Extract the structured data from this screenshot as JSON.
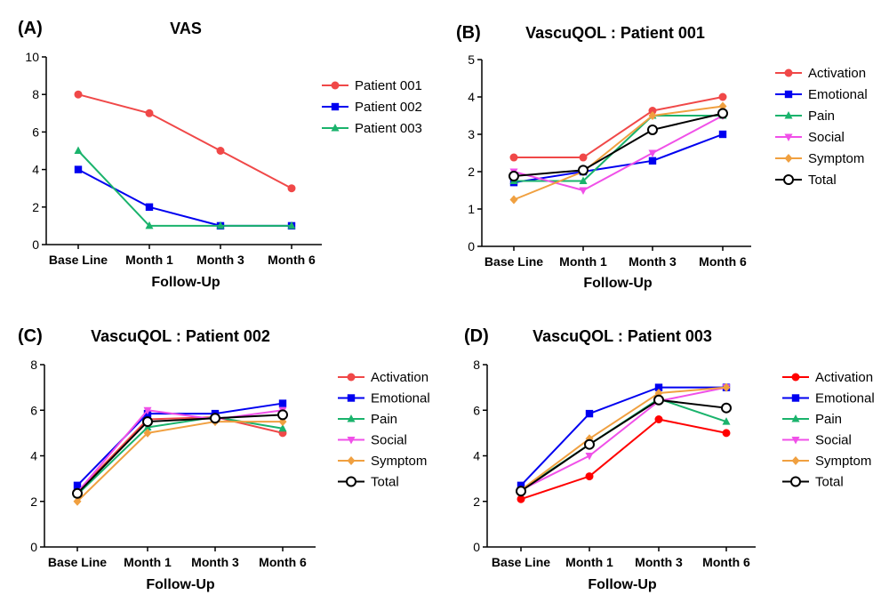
{
  "colors": {
    "red": "#f04848",
    "bright_red": "#ff0000",
    "blue": "#0000f0",
    "green": "#1ab36c",
    "magenta": "#f050e8",
    "orange": "#f0a040",
    "black": "#000000"
  },
  "chart_data": [
    {
      "panel_label": "(A)",
      "type": "line",
      "title": "VAS",
      "xlabel": "Follow-Up",
      "ylabel": "",
      "categories": [
        "Base Line",
        "Month 1",
        "Month 3",
        "Month 6"
      ],
      "ylim": [
        0,
        10
      ],
      "yticks": [
        0,
        2,
        4,
        6,
        8,
        10
      ],
      "legend_position": "right",
      "grid": false,
      "series": [
        {
          "name": "Patient 001",
          "color": "#f04848",
          "marker": "circle",
          "values": [
            8,
            7,
            5,
            3
          ]
        },
        {
          "name": "Patient 002",
          "color": "#0000f0",
          "marker": "square",
          "values": [
            4,
            2,
            1,
            1
          ]
        },
        {
          "name": "Patient 003",
          "color": "#1ab36c",
          "marker": "triangle-up",
          "values": [
            5,
            1,
            1,
            1
          ]
        }
      ]
    },
    {
      "panel_label": "(B)",
      "type": "line",
      "title": "VascuQOL : Patient 001",
      "xlabel": "Follow-Up",
      "ylabel": "",
      "categories": [
        "Base Line",
        "Month 1",
        "Month 3",
        "Month 6"
      ],
      "ylim": [
        0,
        5
      ],
      "yticks": [
        0,
        1,
        2,
        3,
        4,
        5
      ],
      "legend_position": "right",
      "grid": false,
      "series": [
        {
          "name": "Activation",
          "color": "#f04848",
          "marker": "circle",
          "values": [
            2.38,
            2.38,
            3.63,
            4.0
          ]
        },
        {
          "name": "Emotional",
          "color": "#0000f0",
          "marker": "square",
          "values": [
            1.71,
            2.0,
            2.29,
            3.0
          ]
        },
        {
          "name": "Pain",
          "color": "#1ab36c",
          "marker": "triangle-up",
          "values": [
            1.75,
            1.75,
            3.5,
            3.5
          ]
        },
        {
          "name": "Social",
          "color": "#f050e8",
          "marker": "triangle-down",
          "values": [
            2.0,
            1.5,
            2.5,
            3.5
          ]
        },
        {
          "name": "Symptom",
          "color": "#f0a040",
          "marker": "diamond",
          "values": [
            1.25,
            2.0,
            3.5,
            3.75
          ]
        },
        {
          "name": "Total",
          "color": "#000000",
          "marker": "open-circle",
          "values": [
            1.88,
            2.04,
            3.12,
            3.56
          ]
        }
      ]
    },
    {
      "panel_label": "(C)",
      "type": "line",
      "title": "VascuQOL : Patient 002",
      "xlabel": "Follow-Up",
      "ylabel": "",
      "categories": [
        "Base Line",
        "Month 1",
        "Month 3",
        "Month 6"
      ],
      "ylim": [
        0,
        8
      ],
      "yticks": [
        0,
        2,
        4,
        6,
        8
      ],
      "legend_position": "right",
      "grid": false,
      "series": [
        {
          "name": "Activation",
          "color": "#f04848",
          "marker": "circle",
          "values": [
            2.4,
            5.6,
            5.7,
            5.0
          ]
        },
        {
          "name": "Emotional",
          "color": "#0000f0",
          "marker": "square",
          "values": [
            2.7,
            5.85,
            5.85,
            6.3
          ]
        },
        {
          "name": "Pain",
          "color": "#1ab36c",
          "marker": "triangle-up",
          "values": [
            2.3,
            5.25,
            5.7,
            5.2
          ]
        },
        {
          "name": "Social",
          "color": "#f050e8",
          "marker": "triangle-down",
          "values": [
            2.4,
            6.0,
            5.6,
            6.0
          ]
        },
        {
          "name": "Symptom",
          "color": "#f0a040",
          "marker": "diamond",
          "values": [
            2.0,
            5.0,
            5.5,
            5.5
          ]
        },
        {
          "name": "Total",
          "color": "#000000",
          "marker": "open-circle",
          "values": [
            2.35,
            5.5,
            5.65,
            5.8
          ]
        }
      ]
    },
    {
      "panel_label": "(D)",
      "type": "line",
      "title": "VascuQOL : Patient 003",
      "xlabel": "Follow-Up",
      "ylabel": "",
      "categories": [
        "Base Line",
        "Month 1",
        "Month 3",
        "Month 6"
      ],
      "ylim": [
        0,
        8
      ],
      "yticks": [
        0,
        2,
        4,
        6,
        8
      ],
      "legend_position": "right",
      "grid": false,
      "series": [
        {
          "name": "Activation",
          "color": "#ff0000",
          "marker": "circle",
          "values": [
            2.1,
            3.1,
            5.6,
            5.0
          ]
        },
        {
          "name": "Emotional",
          "color": "#0000f0",
          "marker": "square",
          "values": [
            2.7,
            5.85,
            7.0,
            7.0
          ]
        },
        {
          "name": "Pain",
          "color": "#1ab36c",
          "marker": "triangle-up",
          "values": [
            2.5,
            4.5,
            6.5,
            5.5
          ]
        },
        {
          "name": "Social",
          "color": "#f050e8",
          "marker": "triangle-down",
          "values": [
            2.5,
            4.0,
            6.4,
            7.0
          ]
        },
        {
          "name": "Symptom",
          "color": "#f0a040",
          "marker": "diamond",
          "values": [
            2.5,
            4.75,
            6.75,
            7.0
          ]
        },
        {
          "name": "Total",
          "color": "#000000",
          "marker": "open-circle",
          "values": [
            2.45,
            4.5,
            6.45,
            6.1
          ]
        }
      ]
    }
  ]
}
